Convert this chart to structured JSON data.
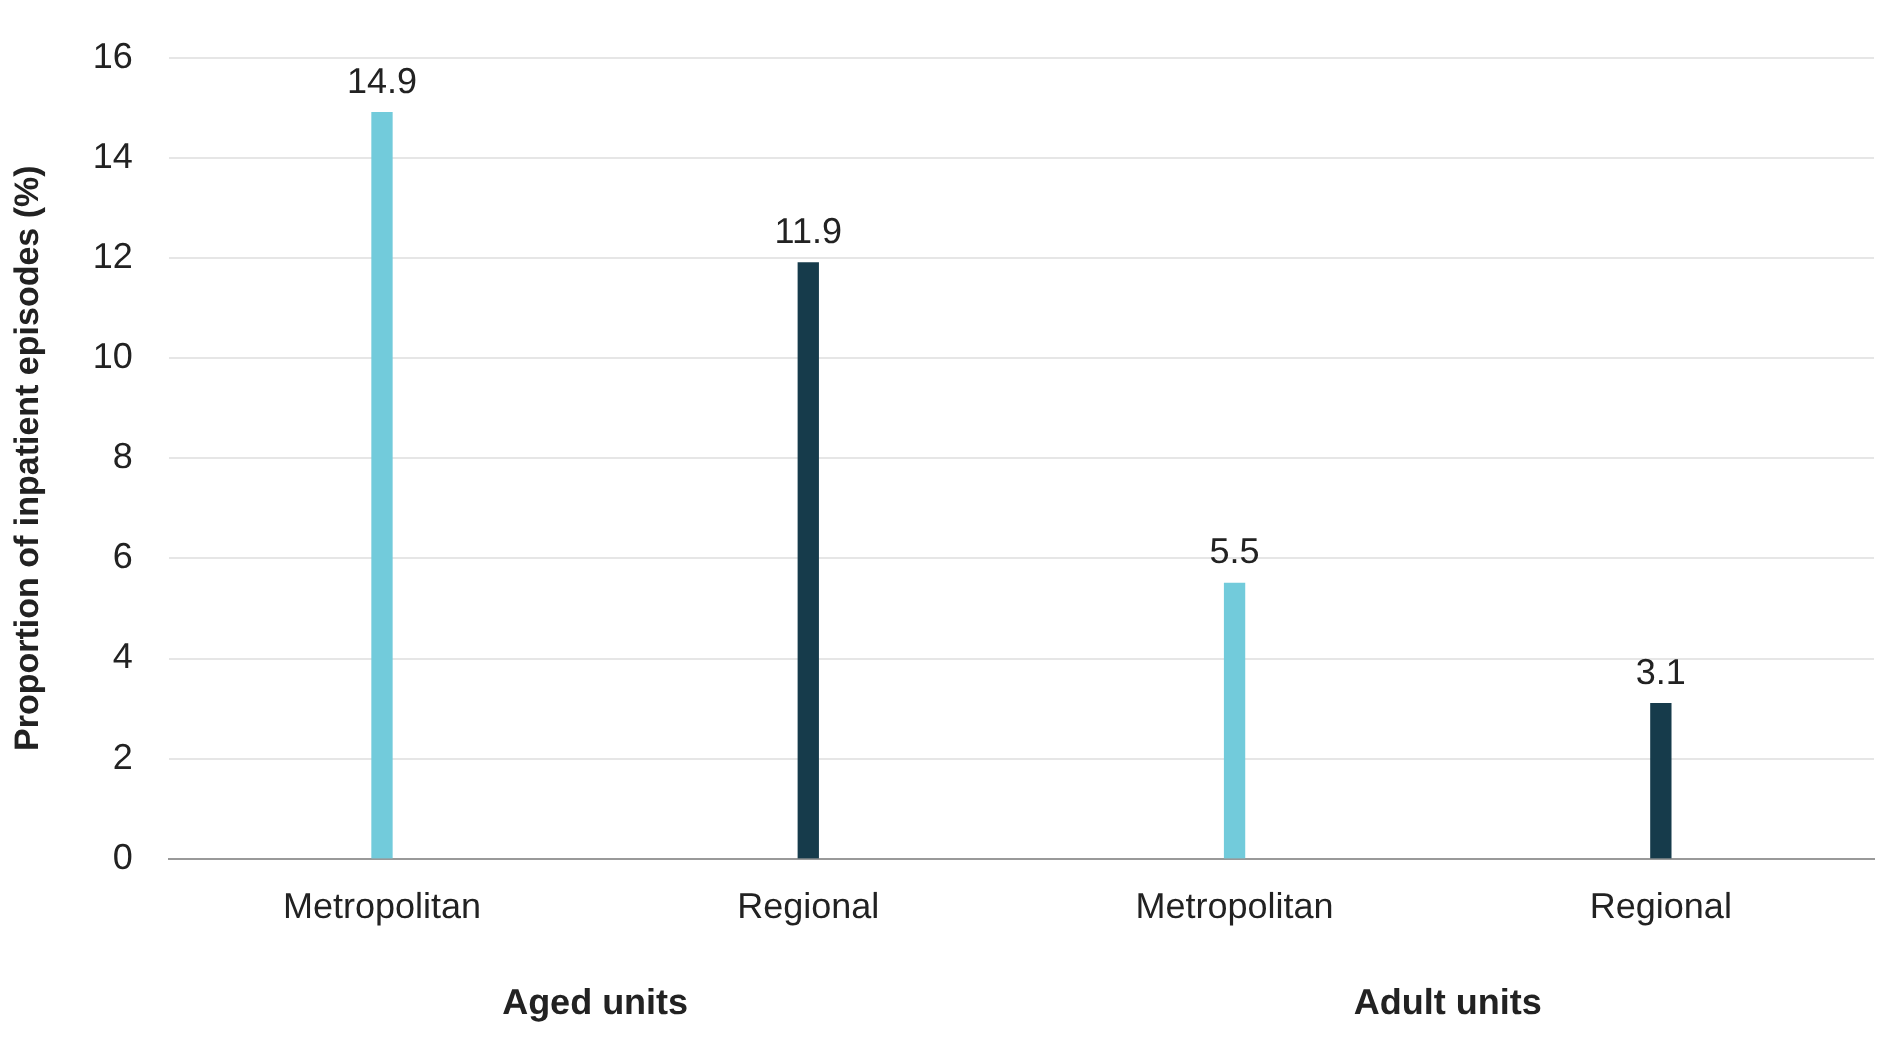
{
  "chart_data": {
    "type": "bar",
    "ylabel": "Proportion of inpatient episodes (%)",
    "categories": [
      "Metropolitan",
      "Regional",
      "Metropolitan",
      "Regional"
    ],
    "values": [
      14.9,
      11.9,
      5.5,
      3.1
    ],
    "colors": [
      "#72cbdb",
      "#163b4b",
      "#72cbdb",
      "#163b4b"
    ],
    "ylim": [
      0,
      16
    ],
    "yticks": [
      0,
      2,
      4,
      6,
      8,
      10,
      12,
      14,
      16
    ],
    "grid": "y",
    "data_labels": true,
    "annotations": [
      "Aged units",
      "Adult units"
    ]
  }
}
